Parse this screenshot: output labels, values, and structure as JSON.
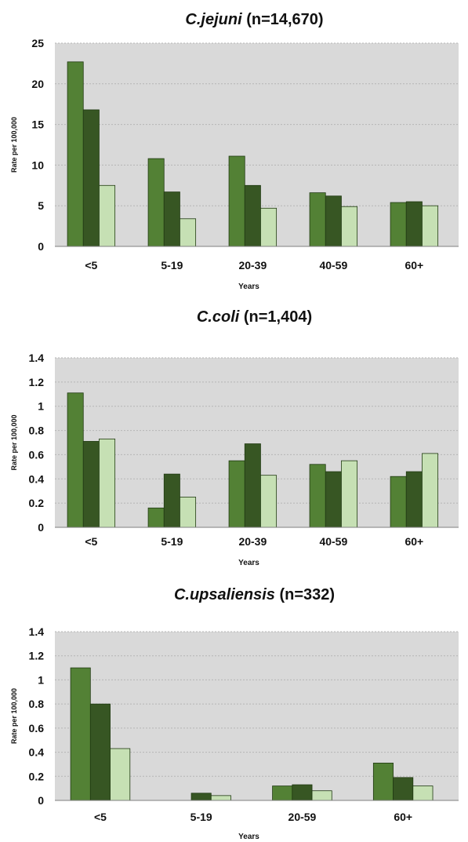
{
  "colors": {
    "plot_background": "#d9d9d9",
    "gridline": "#b5b5b5",
    "series_1": "#538135",
    "series_2": "#375623",
    "series_3": "#c6e0b4",
    "bar_outline": "#203a12"
  },
  "chart_data": [
    {
      "type": "bar",
      "title": {
        "italic": "C.jejuni",
        "rest": " (n=14,670)"
      },
      "xlabel": "Years",
      "ylabel": "Rate per 100,000",
      "ylim": [
        0,
        25
      ],
      "yticks": [
        "0",
        "5",
        "10",
        "15",
        "20",
        "25"
      ],
      "categories": [
        "<5",
        "5-19",
        "20-39",
        "40-59",
        "60+"
      ],
      "grid": "horizontal",
      "legend": "none",
      "series": [
        {
          "values": [
            22.7,
            10.8,
            11.1,
            6.6,
            5.4
          ]
        },
        {
          "values": [
            16.8,
            6.7,
            7.5,
            6.2,
            5.5
          ]
        },
        {
          "values": [
            7.5,
            3.4,
            4.7,
            4.9,
            5.0
          ]
        }
      ]
    },
    {
      "type": "bar",
      "title": {
        "italic": "C.coli",
        "rest": " (n=1,404)"
      },
      "xlabel": "Years",
      "ylabel": "Rate per 100,000",
      "ylim": [
        0,
        1.4
      ],
      "yticks": [
        "0",
        "0.2",
        "0.4",
        "0.6",
        "0.8",
        "1",
        "1.2",
        "1.4"
      ],
      "categories": [
        "<5",
        "5-19",
        "20-39",
        "40-59",
        "60+"
      ],
      "grid": "horizontal",
      "legend": "none",
      "series": [
        {
          "values": [
            1.11,
            0.16,
            0.55,
            0.52,
            0.42
          ]
        },
        {
          "values": [
            0.71,
            0.44,
            0.69,
            0.46,
            0.46
          ]
        },
        {
          "values": [
            0.73,
            0.25,
            0.43,
            0.55,
            0.61
          ]
        }
      ]
    },
    {
      "type": "bar",
      "title": {
        "italic": "C.upsaliensis",
        "rest": " (n=332)"
      },
      "xlabel": "Years",
      "ylabel": "Rate per 100,000",
      "ylim": [
        0,
        1.4
      ],
      "yticks": [
        "0",
        "0.2",
        "0.4",
        "0.6",
        "0.8",
        "1",
        "1.2",
        "1.4"
      ],
      "categories": [
        "<5",
        "5-19",
        "20-59",
        "60+"
      ],
      "grid": "horizontal",
      "legend": "none",
      "series": [
        {
          "values": [
            1.1,
            0.0,
            0.12,
            0.31
          ]
        },
        {
          "values": [
            0.8,
            0.06,
            0.13,
            0.19
          ]
        },
        {
          "values": [
            0.43,
            0.04,
            0.08,
            0.12
          ]
        }
      ]
    }
  ]
}
